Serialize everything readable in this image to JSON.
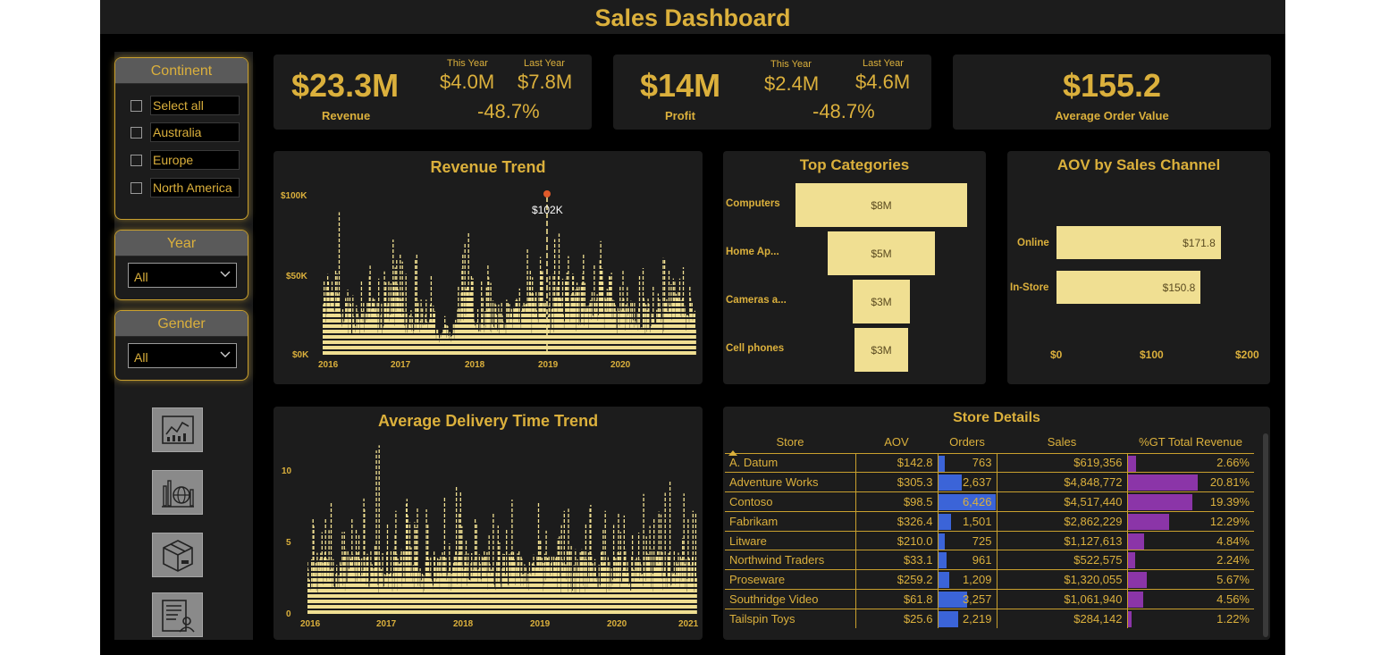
{
  "title": "Sales Dashboard",
  "colors": {
    "gold": "#dbb03c",
    "bar": "#f0df92",
    "bg": "#000000",
    "panel": "#1c1c1c",
    "orders_bar": "#3b64d8",
    "pct_bar": "#8b35a8",
    "peak": "#e05a2a"
  },
  "sidebar": {
    "continent": {
      "title": "Continent",
      "options": [
        "Select all",
        "Australia",
        "Europe",
        "North America"
      ]
    },
    "year": {
      "title": "Year",
      "selected": "All"
    },
    "gender": {
      "title": "Gender",
      "selected": "All"
    },
    "nav_icons": [
      "line-chart-report-icon",
      "globe-bar-chart-icon",
      "package-box-icon",
      "customer-report-icon"
    ]
  },
  "kpis": {
    "revenue": {
      "value": "$23.3M",
      "label": "Revenue",
      "this_year_label": "This Year",
      "this_year": "$4.0M",
      "last_year_label": "Last Year",
      "last_year": "$7.8M",
      "change": "-48.7%"
    },
    "profit": {
      "value": "$14M",
      "label": "Profit",
      "this_year_label": "This Year",
      "this_year": "$2.4M",
      "last_year_label": "Last Year",
      "last_year": "$4.6M",
      "change": "-48.7%"
    },
    "aov": {
      "value": "$155.2",
      "label": "Average Order Value"
    }
  },
  "chart_data": [
    {
      "type": "bar",
      "title": "Revenue Trend",
      "x_ticks": [
        "2016",
        "2017",
        "2018",
        "2019",
        "2020"
      ],
      "y_ticks": [
        "$0K",
        "$50K",
        "$100K"
      ],
      "ylim": [
        0,
        100000
      ],
      "peak": {
        "label": "$102K",
        "value": 102000,
        "x": "2019"
      }
    },
    {
      "type": "bar",
      "title": "Top Categories",
      "categories": [
        "Computers",
        "Home Ap...",
        "Cameras a...",
        "Cell phones"
      ],
      "values": [
        8,
        5,
        3,
        3
      ],
      "labels": [
        "$8M",
        "$5M",
        "$3M",
        "$3M"
      ]
    },
    {
      "type": "bar",
      "title": "AOV by Sales Channel",
      "categories": [
        "Online",
        "In-Store"
      ],
      "values": [
        171.8,
        150.8
      ],
      "labels": [
        "$171.8",
        "$150.8"
      ],
      "x_ticks": [
        "$0",
        "$100",
        "$200"
      ],
      "xlim": [
        0,
        200
      ]
    },
    {
      "type": "bar",
      "title": "Average Delivery Time Trend",
      "x_ticks": [
        "2016",
        "2017",
        "2018",
        "2019",
        "2020",
        "2021"
      ],
      "y_ticks": [
        "0",
        "5",
        "10"
      ],
      "ylim": [
        0,
        12
      ]
    }
  ],
  "store_table": {
    "title": "Store Details",
    "columns": [
      "Store",
      "AOV",
      "Orders",
      "Sales",
      "%GT Total Revenue"
    ],
    "rows": [
      {
        "store": "A. Datum",
        "aov": "$142.8",
        "orders": "763",
        "orders_n": 763,
        "sales": "$619,356",
        "pct": "2.66%",
        "pct_n": 2.66
      },
      {
        "store": "Adventure Works",
        "aov": "$305.3",
        "orders": "2,637",
        "orders_n": 2637,
        "sales": "$4,848,772",
        "pct": "20.81%",
        "pct_n": 20.81
      },
      {
        "store": "Contoso",
        "aov": "$98.5",
        "orders": "6,426",
        "orders_n": 6426,
        "sales": "$4,517,440",
        "pct": "19.39%",
        "pct_n": 19.39
      },
      {
        "store": "Fabrikam",
        "aov": "$326.4",
        "orders": "1,501",
        "orders_n": 1501,
        "sales": "$2,862,229",
        "pct": "12.29%",
        "pct_n": 12.29
      },
      {
        "store": "Litware",
        "aov": "$210.0",
        "orders": "725",
        "orders_n": 725,
        "sales": "$1,127,613",
        "pct": "4.84%",
        "pct_n": 4.84
      },
      {
        "store": "Northwind Traders",
        "aov": "$33.1",
        "orders": "961",
        "orders_n": 961,
        "sales": "$522,575",
        "pct": "2.24%",
        "pct_n": 2.24
      },
      {
        "store": "Proseware",
        "aov": "$259.2",
        "orders": "1,209",
        "orders_n": 1209,
        "sales": "$1,320,055",
        "pct": "5.67%",
        "pct_n": 5.67
      },
      {
        "store": "Southridge Video",
        "aov": "$61.8",
        "orders": "3,257",
        "orders_n": 3257,
        "sales": "$1,061,940",
        "pct": "4.56%",
        "pct_n": 4.56
      },
      {
        "store": "Tailspin Toys",
        "aov": "$25.6",
        "orders": "2,219",
        "orders_n": 2219,
        "sales": "$284,142",
        "pct": "1.22%",
        "pct_n": 1.22
      }
    ]
  }
}
